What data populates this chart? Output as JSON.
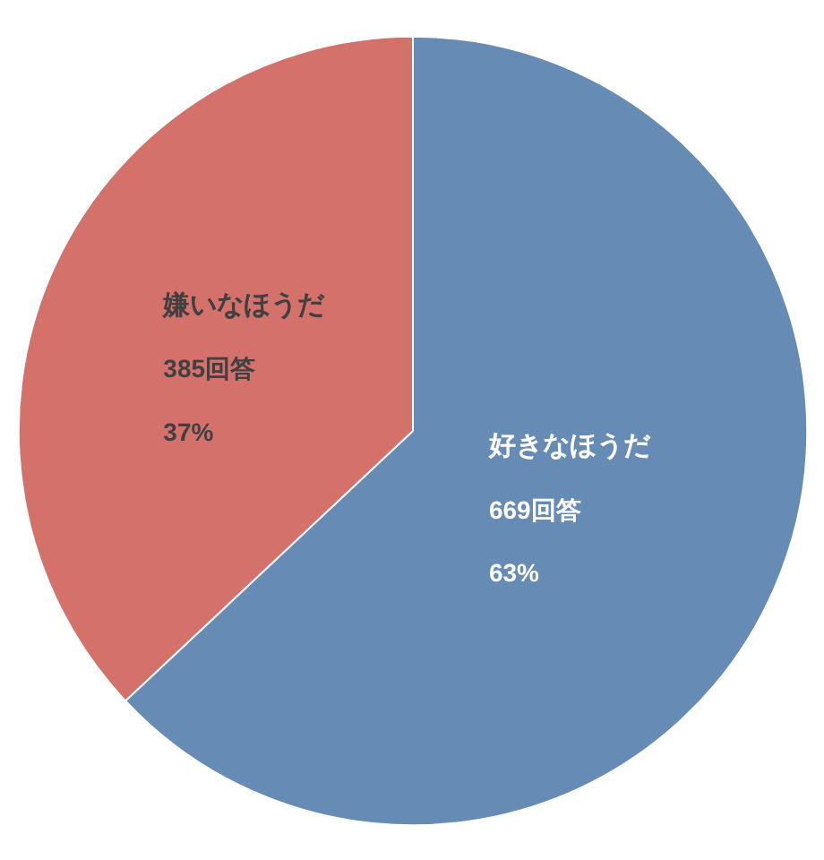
{
  "chart_data": {
    "type": "pie",
    "categories": [
      "好きなほうだ",
      "嫌いなほうだ"
    ],
    "values": [
      63,
      37
    ],
    "colors": [
      "#668bb5",
      "#d4716b"
    ],
    "value_labels": [
      "669回答\n63%",
      "385回答\n37%"
    ]
  }
}
